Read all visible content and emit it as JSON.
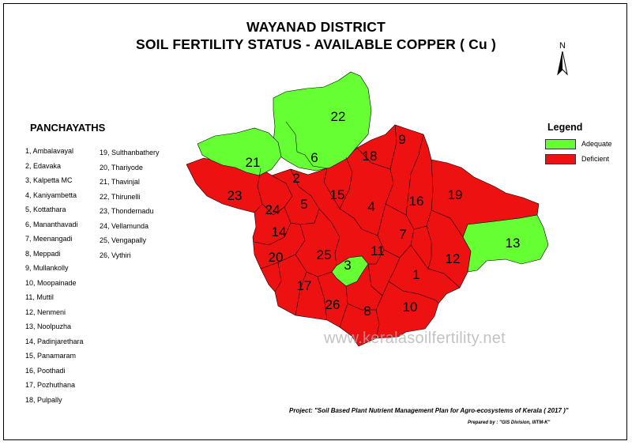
{
  "title_line1": "WAYANAD DISTRICT",
  "title_line2": "SOIL FERTILITY STATUS - AVAILABLE COPPER ( Cu )",
  "north_label": "N",
  "panchayaths_heading": "PANCHAYATHS",
  "panchayaths": [
    "1, Ambalavayal",
    "2, Edavaka",
    "3, Kalpetta MC",
    "4, Kaniyambetta",
    "5, Kottathara",
    "6, Mananthavadi",
    "7, Meenangadi",
    "8, Meppadi",
    "9, Mullankolly",
    "10, Moopainade",
    "11, Muttil",
    "12, Nenmeni",
    "13, Noolpuzha",
    "14, Padinjarethara",
    "15, Panamaram",
    "16, Poothadi",
    "17, Pozhuthana",
    "18, Pulpally",
    "19, Sulthanbathery",
    "20, Thariyode",
    "21, Thavinjal",
    "22, Thirunelli",
    "23, Thondernadu",
    "24, Vellamunda",
    "25, Vengapally",
    "26, Vythiri"
  ],
  "legend": {
    "title": "Legend",
    "items": [
      {
        "label": "Adequate",
        "color": "#66ff33"
      },
      {
        "label": "Deficient",
        "color": "#ee1111"
      }
    ]
  },
  "region_labels": [
    {
      "num": "1",
      "status": "Deficient"
    },
    {
      "num": "2",
      "status": "Deficient"
    },
    {
      "num": "3",
      "status": "Adequate"
    },
    {
      "num": "4",
      "status": "Deficient"
    },
    {
      "num": "5",
      "status": "Deficient"
    },
    {
      "num": "6",
      "status": "Adequate"
    },
    {
      "num": "7",
      "status": "Deficient"
    },
    {
      "num": "8",
      "status": "Deficient"
    },
    {
      "num": "9",
      "status": "Deficient"
    },
    {
      "num": "10",
      "status": "Deficient"
    },
    {
      "num": "11",
      "status": "Deficient"
    },
    {
      "num": "12",
      "status": "Deficient"
    },
    {
      "num": "13",
      "status": "Adequate"
    },
    {
      "num": "14",
      "status": "Deficient"
    },
    {
      "num": "15",
      "status": "Deficient"
    },
    {
      "num": "16",
      "status": "Deficient"
    },
    {
      "num": "17",
      "status": "Deficient"
    },
    {
      "num": "18",
      "status": "Deficient"
    },
    {
      "num": "19",
      "status": "Deficient"
    },
    {
      "num": "20",
      "status": "Deficient"
    },
    {
      "num": "21",
      "status": "Adequate"
    },
    {
      "num": "22",
      "status": "Adequate"
    },
    {
      "num": "23",
      "status": "Deficient"
    },
    {
      "num": "24",
      "status": "Deficient"
    },
    {
      "num": "25",
      "status": "Deficient"
    },
    {
      "num": "26",
      "status": "Deficient"
    }
  ],
  "watermark": "www.keralasoilfertility.net",
  "project_text": "Project: \"Soil Based Plant Nutrient Management Plan for Agro-ecosystems of Kerala ( 2017 )\"",
  "prepared_text": "Prepared by : \"GIS Division, IIITM-K\""
}
